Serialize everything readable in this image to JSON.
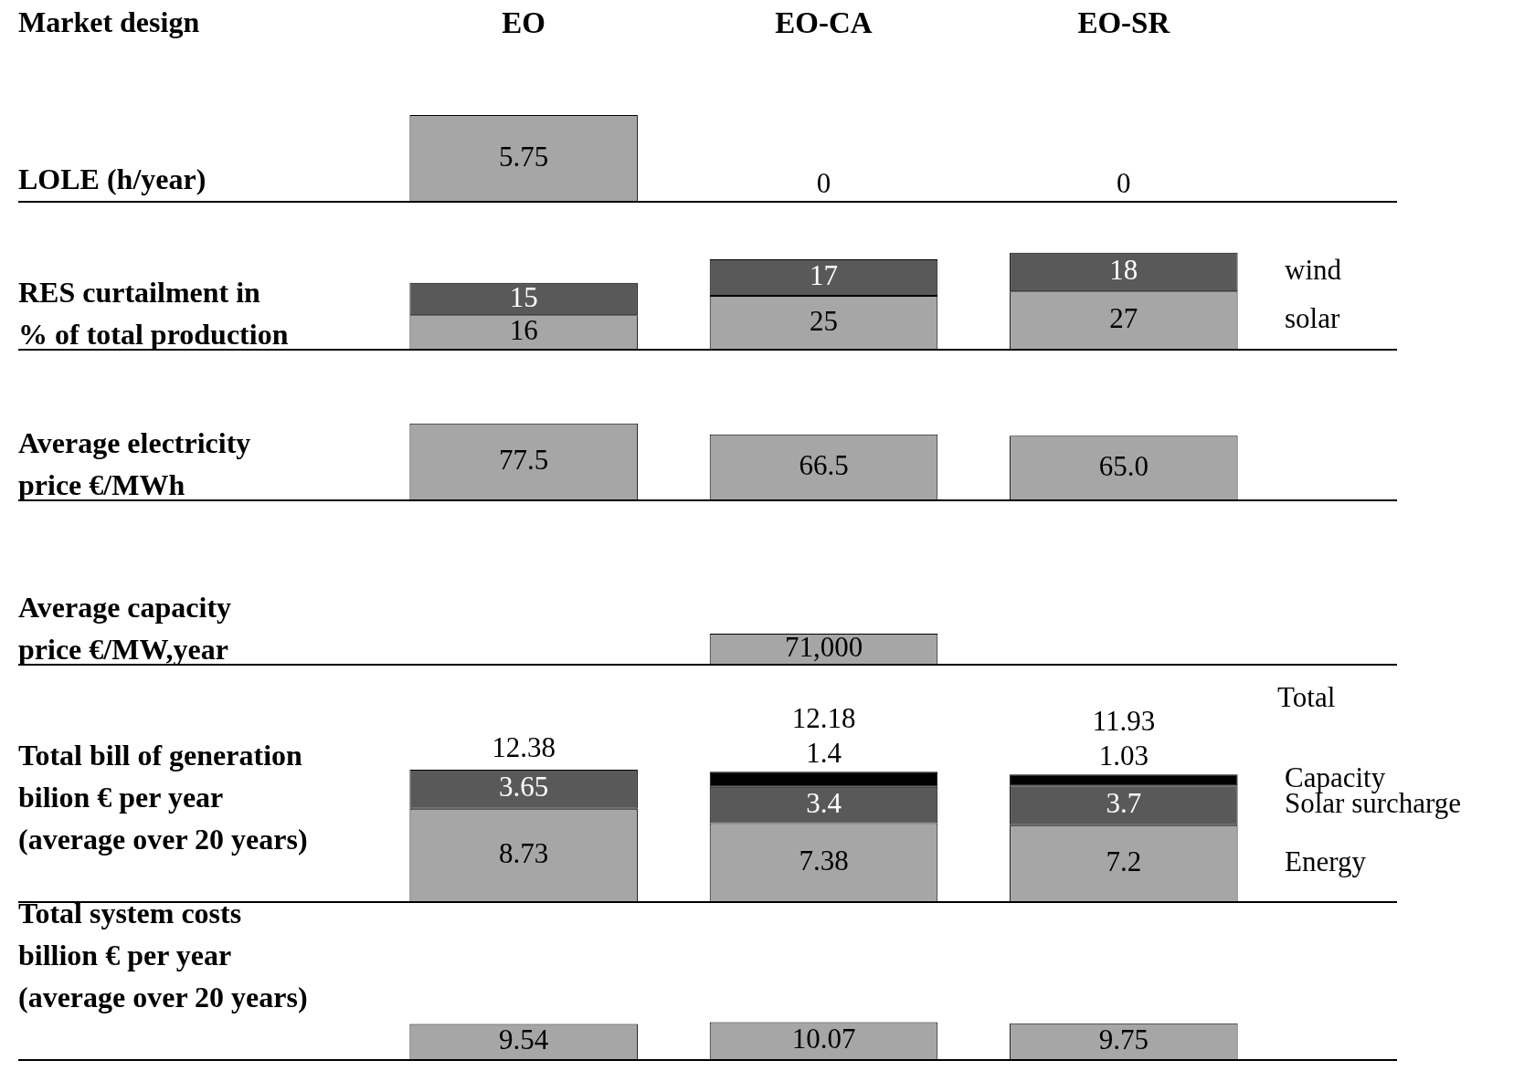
{
  "chart_data": [
    {
      "type": "bar",
      "title": "LOLE (h/year)",
      "annotations": [
        "Market design"
      ],
      "categories": [
        "EO",
        "EO-CA",
        "EO-SR"
      ],
      "values": [
        5.75,
        0,
        0
      ],
      "color": "#a6a6a6",
      "data_labels": true
    },
    {
      "type": "bar",
      "title": "RES curtailment in\n% of total production",
      "categories": [
        null,
        null,
        null
      ],
      "stacked": true,
      "data_labels": true,
      "series": [
        {
          "name": "solar",
          "color": "#a6a6a6",
          "values": [
            16,
            25,
            27
          ]
        },
        {
          "name": "wind",
          "color": "#595959",
          "values": [
            15,
            17,
            18
          ]
        }
      ]
    },
    {
      "type": "bar",
      "title": "Average electricity\nprice €/MWh",
      "categories": [
        null,
        null,
        null
      ],
      "values": [
        77.5,
        66.5,
        65.0
      ],
      "value_labels": [
        "77.5",
        "66.5",
        "65.0"
      ],
      "color": "#a6a6a6"
    },
    {
      "type": "bar",
      "title": "Average capacity\nprice €/MW,year",
      "categories": [
        null,
        null,
        null
      ],
      "values": [
        null,
        71000,
        null
      ],
      "value_labels": [
        null,
        "71,000",
        null
      ],
      "color": "#a6a6a6"
    },
    {
      "type": "bar",
      "title": "Total bill of generation\nbilion € per year\n(average over 20 years)",
      "annotations": [
        "Total"
      ],
      "categories": [
        null,
        null,
        null
      ],
      "stacked": true,
      "data_labels": true,
      "totals": [
        "12.38",
        "12.18",
        "11.93"
      ],
      "series": [
        {
          "name": "Energy",
          "color": "#a6a6a6",
          "values": [
            8.73,
            7.38,
            7.2
          ]
        },
        {
          "name": "Solar surcharge",
          "color": "#595959",
          "values": [
            3.65,
            3.4,
            3.7
          ]
        },
        {
          "name": "Capacity",
          "color": "#000000",
          "values": [
            null,
            1.4,
            1.03
          ]
        }
      ]
    },
    {
      "type": "bar",
      "title": "Total system costs\nbillion € per year\n(average over 20 years)",
      "categories": [
        null,
        null,
        null
      ],
      "values": [
        9.54,
        10.07,
        9.75
      ],
      "color": "#a6a6a6",
      "data_labels": true
    }
  ]
}
